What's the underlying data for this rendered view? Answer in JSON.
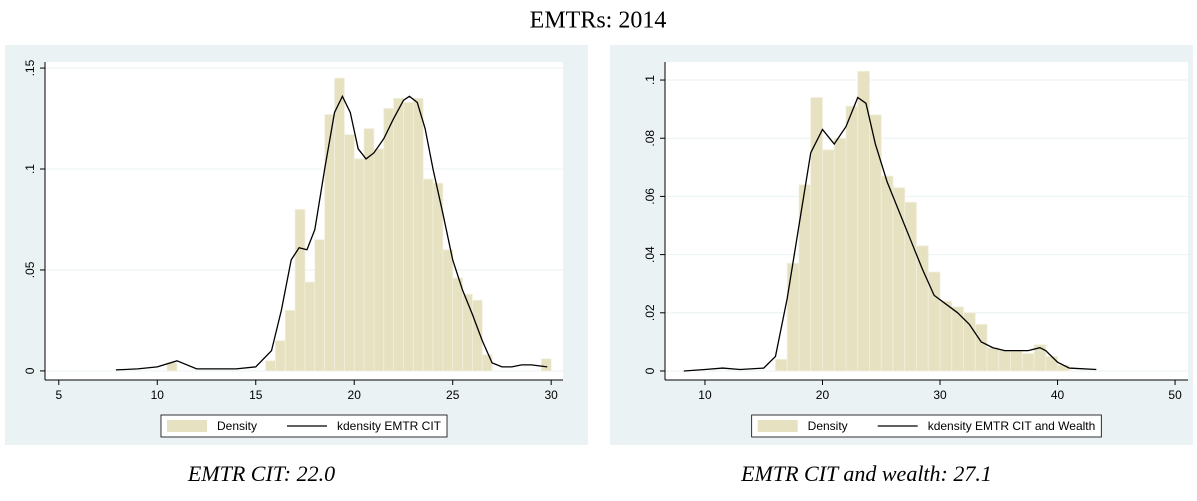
{
  "title": "EMTRs: 2014",
  "chart_data": [
    {
      "type": "histogram",
      "caption": "EMTR CIT: 22.0",
      "xlim": [
        4.3,
        30.6
      ],
      "ylim": [
        -0.0045,
        0.153
      ],
      "xticks": [
        5,
        10,
        15,
        20,
        25,
        30
      ],
      "yticks": [
        0,
        {
          "value": 0.05,
          "label": ".05"
        },
        {
          "value": 0.1,
          "label": ".1"
        },
        {
          "value": 0.15,
          "label": ".15"
        }
      ],
      "grid": true,
      "legend": "bottom",
      "series": [
        {
          "name": "Density",
          "type": "histogram",
          "color": "#e6e1c1",
          "bins": [
            10,
            10.5,
            11,
            11.5,
            12,
            12.5,
            13,
            13.5,
            14,
            14.5,
            15,
            15.5,
            16,
            16.5,
            17,
            17.5,
            18,
            18.5,
            19,
            19.5,
            20,
            20.5,
            21,
            21.5,
            22,
            22.5,
            23,
            23.5,
            24,
            24.5,
            25,
            25.5,
            26,
            26.5,
            27,
            27.5,
            28,
            28.5,
            29,
            29.5,
            30
          ],
          "values": [
            0,
            0.004,
            0,
            0,
            0,
            0,
            0,
            0,
            0,
            0,
            0,
            0.005,
            0.015,
            0.03,
            0.08,
            0.044,
            0.065,
            0.127,
            0.145,
            0.117,
            0.105,
            0.12,
            0.11,
            0.13,
            0.135,
            0.133,
            0.135,
            0.095,
            0.093,
            0.06,
            0.046,
            0.038,
            0.035,
            0.008,
            0,
            0,
            0,
            0,
            0,
            0.006
          ]
        },
        {
          "name": "kdensity EMTR CIT",
          "type": "line",
          "color": "#000000",
          "x": [
            7.9,
            9,
            10,
            11,
            12,
            13,
            14,
            15,
            15.8,
            16.3,
            16.8,
            17.2,
            17.6,
            18,
            18.5,
            19,
            19.4,
            19.8,
            20.2,
            20.6,
            21,
            21.5,
            22,
            22.5,
            22.8,
            23.2,
            23.6,
            24,
            24.5,
            25,
            25.5,
            26,
            26.5,
            27,
            27.5,
            28,
            28.5,
            29,
            29.8
          ],
          "values": [
            0.0005,
            0.001,
            0.002,
            0.005,
            0.001,
            0.001,
            0.001,
            0.002,
            0.01,
            0.03,
            0.055,
            0.061,
            0.06,
            0.07,
            0.1,
            0.128,
            0.136,
            0.128,
            0.11,
            0.105,
            0.108,
            0.115,
            0.125,
            0.134,
            0.136,
            0.133,
            0.12,
            0.1,
            0.078,
            0.055,
            0.04,
            0.028,
            0.015,
            0.004,
            0.002,
            0.002,
            0.003,
            0.003,
            0.002
          ]
        }
      ]
    },
    {
      "type": "histogram",
      "caption": "EMTR CIT and wealth: 27.1",
      "xlim": [
        6.6,
        51.1
      ],
      "ylim": [
        -0.0031,
        0.1062
      ],
      "xticks": [
        10,
        20,
        30,
        40,
        50
      ],
      "yticks": [
        0,
        {
          "value": 0.02,
          "label": ".02"
        },
        {
          "value": 0.04,
          "label": ".04"
        },
        {
          "value": 0.06,
          "label": ".06"
        },
        {
          "value": 0.08,
          "label": ".08"
        },
        {
          "value": 0.1,
          "label": ".1"
        }
      ],
      "grid": true,
      "legend": "bottom",
      "series": [
        {
          "name": "Density",
          "type": "histogram",
          "color": "#e6e1c1",
          "bins": [
            16,
            17,
            18,
            19,
            20,
            21,
            22,
            23,
            24,
            25,
            26,
            27,
            28,
            29,
            30,
            31,
            32,
            33,
            34,
            35,
            36,
            37,
            38,
            39,
            40,
            41
          ],
          "values": [
            0.004,
            0.037,
            0.064,
            0.094,
            0.076,
            0.08,
            0.091,
            0.103,
            0.088,
            0.067,
            0.063,
            0.058,
            0.043,
            0.034,
            0.024,
            0.022,
            0.02,
            0.016,
            0.008,
            0.007,
            0.007,
            0.006,
            0.009,
            0.005,
            0.002
          ]
        },
        {
          "name": "kdensity EMTR CIT and Wealth",
          "type": "line",
          "color": "#000000",
          "x": [
            8.2,
            10,
            11.5,
            13,
            15,
            16,
            17,
            18,
            19,
            20,
            21,
            22,
            23,
            23.7,
            24.5,
            25.5,
            26.5,
            27.5,
            28.5,
            29.5,
            30.5,
            31.5,
            32.5,
            33.5,
            34.5,
            35.5,
            36.5,
            37.5,
            38.5,
            39,
            40,
            41,
            43.3
          ],
          "values": [
            0,
            0.0005,
            0.001,
            0.0005,
            0.001,
            0.005,
            0.025,
            0.05,
            0.075,
            0.083,
            0.078,
            0.084,
            0.094,
            0.092,
            0.078,
            0.065,
            0.055,
            0.045,
            0.035,
            0.026,
            0.023,
            0.02,
            0.016,
            0.01,
            0.008,
            0.007,
            0.007,
            0.007,
            0.008,
            0.007,
            0.003,
            0.001,
            0.0005
          ]
        }
      ]
    }
  ]
}
